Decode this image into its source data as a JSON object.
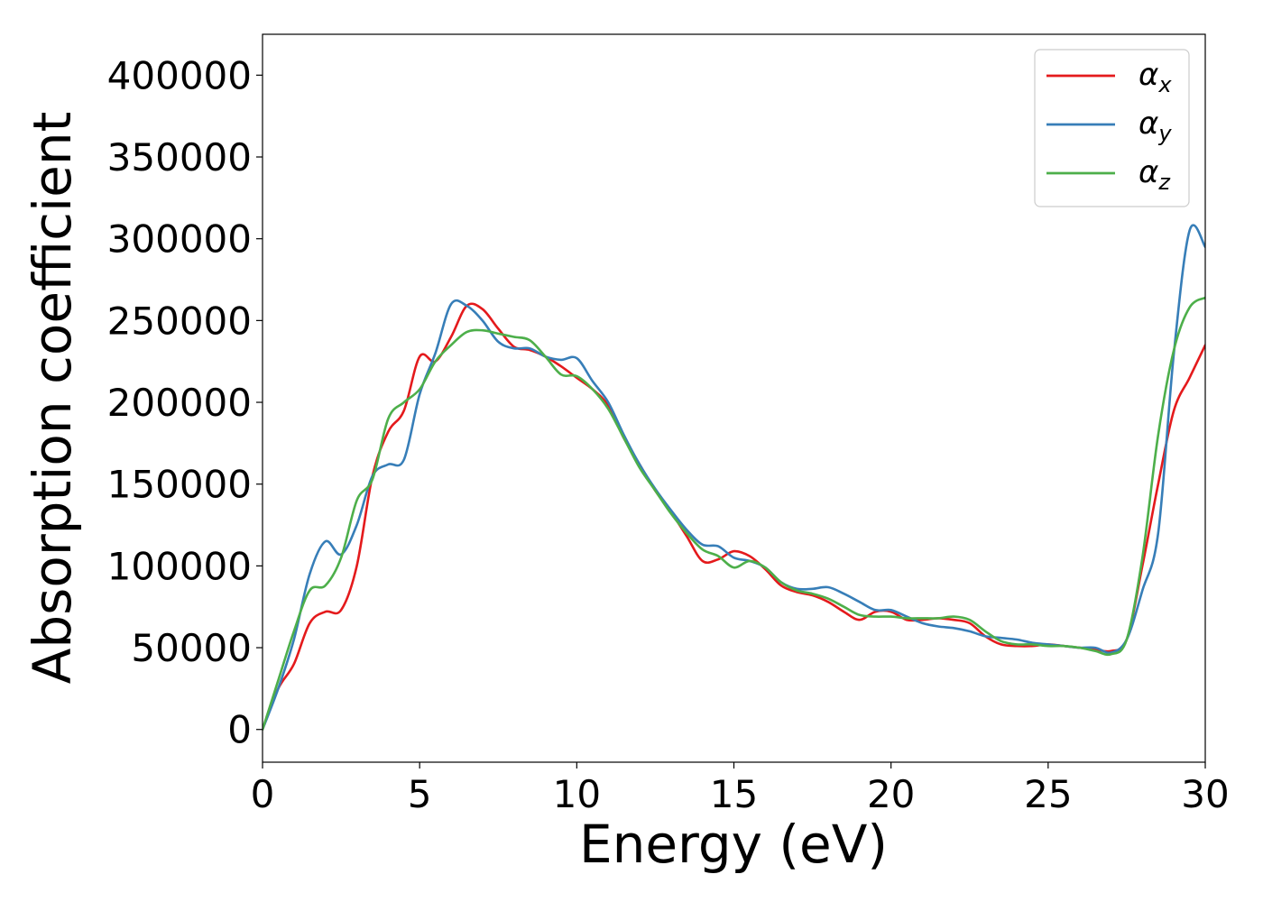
{
  "chart_data": {
    "type": "line",
    "title": "",
    "xlabel": "Energy (eV)",
    "ylabel": "Absorption coefficient",
    "xlim": [
      0,
      30
    ],
    "ylim": [
      -20000,
      425000
    ],
    "xticks": [
      0,
      5,
      10,
      15,
      20,
      25,
      30
    ],
    "xtick_labels": [
      "0",
      "5",
      "10",
      "15",
      "20",
      "25",
      "30"
    ],
    "yticks": [
      0,
      50000,
      100000,
      150000,
      200000,
      250000,
      300000,
      350000,
      400000
    ],
    "ytick_labels": [
      "0",
      "50000",
      "100000",
      "150000",
      "200000",
      "250000",
      "300000",
      "350000",
      "400000"
    ],
    "grid": false,
    "legend_position": "top-right",
    "series": [
      {
        "name": "α_x",
        "label_base": "α",
        "label_sub": "x",
        "color": "#e41a1c",
        "x": [
          0,
          0.5,
          1,
          1.5,
          2,
          2.5,
          3,
          3.5,
          4,
          4.5,
          5,
          5.5,
          6,
          6.5,
          7,
          7.5,
          8,
          8.5,
          9,
          9.5,
          10,
          10.5,
          11,
          11.5,
          12,
          12.5,
          13,
          13.5,
          14,
          14.5,
          15,
          15.5,
          16,
          16.5,
          17,
          17.5,
          18,
          18.5,
          19,
          19.5,
          20,
          20.5,
          21,
          21.5,
          22,
          22.5,
          23,
          23.5,
          24,
          24.5,
          25,
          25.5,
          26,
          26.5,
          27,
          27.5,
          28,
          28.5,
          29,
          29.5,
          30
        ],
        "values": [
          0,
          25000,
          40000,
          65000,
          72000,
          73000,
          100000,
          155000,
          182000,
          195000,
          228000,
          225000,
          240000,
          259000,
          257000,
          245000,
          234000,
          232000,
          228000,
          222000,
          215000,
          208000,
          198000,
          178000,
          162000,
          146000,
          133000,
          118000,
          103000,
          104000,
          109000,
          106000,
          98000,
          88000,
          84000,
          82000,
          78000,
          72000,
          67000,
          72000,
          72000,
          67000,
          67000,
          68000,
          67000,
          65000,
          57000,
          52000,
          51000,
          51000,
          52000,
          51000,
          50000,
          49000,
          48000,
          55000,
          100000,
          150000,
          195000,
          215000,
          235000
        ]
      },
      {
        "name": "α_y",
        "label_base": "α",
        "label_sub": "y",
        "color": "#377eb8",
        "x": [
          0,
          0.5,
          1,
          1.5,
          2,
          2.5,
          3,
          3.5,
          4,
          4.5,
          5,
          5.5,
          6,
          6.5,
          7,
          7.5,
          8,
          8.5,
          9,
          9.5,
          10,
          10.5,
          11,
          11.5,
          12,
          12.5,
          13,
          13.5,
          14,
          14.5,
          15,
          15.5,
          16,
          16.5,
          17,
          17.5,
          18,
          18.5,
          19,
          19.5,
          20,
          20.5,
          21,
          21.5,
          22,
          22.5,
          23,
          23.5,
          24,
          24.5,
          25,
          25.5,
          26,
          26.5,
          27,
          27.5,
          28,
          28.5,
          29,
          29.5,
          30
        ],
        "values": [
          0,
          25000,
          55000,
          95000,
          115000,
          107000,
          125000,
          155000,
          162000,
          165000,
          205000,
          230000,
          260000,
          259000,
          250000,
          237000,
          233000,
          233000,
          228000,
          226000,
          227000,
          213000,
          200000,
          180000,
          162000,
          147000,
          134000,
          122000,
          113000,
          112000,
          105000,
          103000,
          99000,
          90000,
          86000,
          86000,
          87000,
          83000,
          78000,
          73000,
          73000,
          69000,
          65000,
          63000,
          62000,
          60000,
          57000,
          56000,
          55000,
          53000,
          52000,
          51000,
          50000,
          50000,
          47000,
          55000,
          85000,
          120000,
          230000,
          305000,
          295000
        ]
      },
      {
        "name": "α_z",
        "label_base": "α",
        "label_sub": "z",
        "color": "#4daf4a",
        "x": [
          0,
          0.5,
          1,
          1.5,
          2,
          2.5,
          3,
          3.5,
          4,
          4.5,
          5,
          5.5,
          6,
          6.5,
          7,
          7.5,
          8,
          8.5,
          9,
          9.5,
          10,
          10.5,
          11,
          11.5,
          12,
          12.5,
          13,
          13.5,
          14,
          14.5,
          15,
          15.5,
          16,
          16.5,
          17,
          17.5,
          18,
          18.5,
          19,
          19.5,
          20,
          20.5,
          21,
          21.5,
          22,
          22.5,
          23,
          23.5,
          24,
          24.5,
          25,
          25.5,
          26,
          26.5,
          27,
          27.5,
          28,
          28.5,
          29,
          29.5,
          30
        ],
        "values": [
          0,
          30000,
          60000,
          85000,
          88000,
          105000,
          140000,
          153000,
          190000,
          200000,
          208000,
          225000,
          235000,
          243000,
          244000,
          242000,
          240000,
          238000,
          228000,
          217000,
          216000,
          208000,
          196000,
          178000,
          160000,
          146000,
          132000,
          120000,
          110000,
          106000,
          99000,
          103000,
          99000,
          90000,
          85000,
          83000,
          80000,
          75000,
          70000,
          69000,
          69000,
          68000,
          68000,
          68000,
          69000,
          67000,
          60000,
          54000,
          52000,
          52000,
          51000,
          51000,
          50000,
          48000,
          46000,
          55000,
          105000,
          180000,
          232000,
          258000,
          264000
        ]
      }
    ]
  }
}
